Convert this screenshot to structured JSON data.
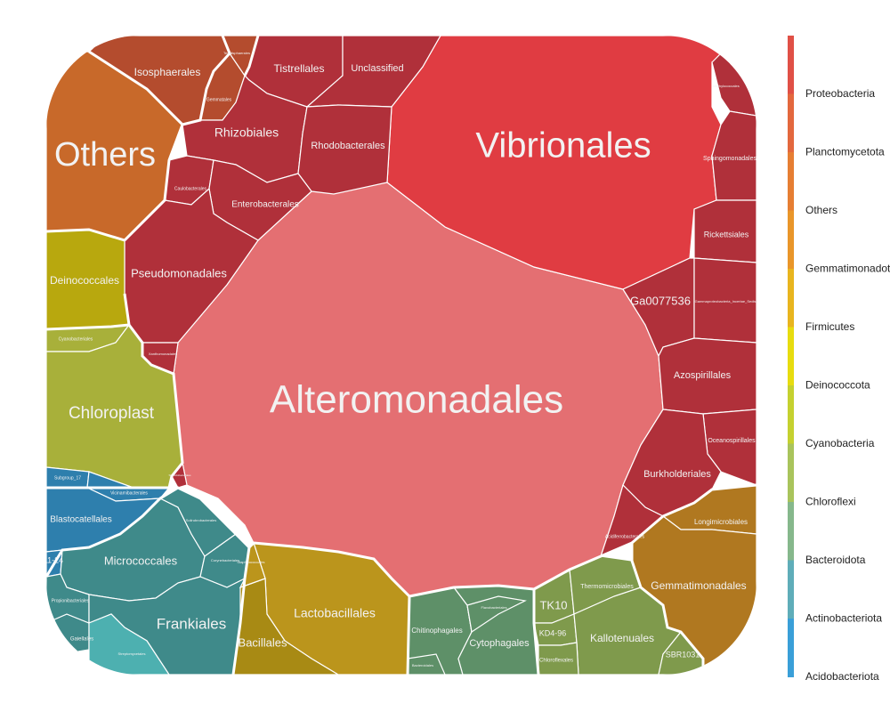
{
  "chart_data": {
    "type": "voronoi-treemap",
    "legend": {
      "placement": "right",
      "entries": [
        {
          "name": "Proteobacteria",
          "color": "#e05046"
        },
        {
          "name": "Planctomycetota",
          "color": "#e3683e"
        },
        {
          "name": "Others",
          "color": "#e67e33"
        },
        {
          "name": "Gemmatimonadota",
          "color": "#e9962a"
        },
        {
          "name": "Firmicutes",
          "color": "#e8b51f"
        },
        {
          "name": "Deinococcota",
          "color": "#e7dc10"
        },
        {
          "name": "Cyanobacteria",
          "color": "#c5d130"
        },
        {
          "name": "Chloroflexi",
          "color": "#a9c45c"
        },
        {
          "name": "Bacteroidota",
          "color": "#86b88c"
        },
        {
          "name": "Actinobacteriota",
          "color": "#5fadb9"
        },
        {
          "name": "Acidobacteriota",
          "color": "#3a9fd8"
        }
      ]
    },
    "cells": [
      {
        "label": "Alteromonadales",
        "group": "Proteobacteria",
        "color": "#e46f72"
      },
      {
        "label": "Vibrionales",
        "group": "Proteobacteria",
        "color": "#e03c42"
      },
      {
        "label": "Others",
        "group": "Others",
        "color": "#c8692a"
      },
      {
        "label": "Isosphaerales",
        "group": "Planctomycetota",
        "color": "#b44c2e"
      },
      {
        "label": "Gemmatales",
        "group": "Planctomycetota",
        "color": "#b44c2e"
      },
      {
        "label": "Tepidisphaerales",
        "group": "Planctomycetota",
        "color": "#b44c2e"
      },
      {
        "label": "Tistrellales",
        "group": "Proteobacteria",
        "color": "#b0303a"
      },
      {
        "label": "Unclassified",
        "group": "Proteobacteria",
        "color": "#b0303a"
      },
      {
        "label": "Rhizobiales",
        "group": "Proteobacteria",
        "color": "#b0303a"
      },
      {
        "label": "Rhodobacterales",
        "group": "Proteobacteria",
        "color": "#b0303a"
      },
      {
        "label": "Caulobacterales",
        "group": "Proteobacteria",
        "color": "#b0303a"
      },
      {
        "label": "Enterobacterales",
        "group": "Proteobacteria",
        "color": "#b0303a"
      },
      {
        "label": "Pseudomonadales",
        "group": "Proteobacteria",
        "color": "#b0303a"
      },
      {
        "label": "Xanthomonadales",
        "group": "Proteobacteria",
        "color": "#b0303a"
      },
      {
        "label": "Methylococcales",
        "group": "Proteobacteria",
        "color": "#b0303a"
      },
      {
        "label": "Sphingomonadales",
        "group": "Proteobacteria",
        "color": "#b0303a"
      },
      {
        "label": "Rickettsiales",
        "group": "Proteobacteria",
        "color": "#b0303a"
      },
      {
        "label": "Ga0077536",
        "group": "Proteobacteria",
        "color": "#b0303a"
      },
      {
        "label": "Gammaproteobacteria_Incertae_Sedis",
        "group": "Proteobacteria",
        "color": "#b0303a"
      },
      {
        "label": "Azospirillales",
        "group": "Proteobacteria",
        "color": "#b0303a"
      },
      {
        "label": "Oceanospirillales",
        "group": "Proteobacteria",
        "color": "#b0303a"
      },
      {
        "label": "Burkholderiales",
        "group": "Proteobacteria",
        "color": "#b0303a"
      },
      {
        "label": "Acidiferrobacterales",
        "group": "Proteobacteria",
        "color": "#b0303a"
      },
      {
        "label": "Steroidobacterales",
        "group": "Proteobacteria",
        "color": "#b0303a"
      },
      {
        "label": "Deinococcales",
        "group": "Deinococcota",
        "color": "#b8a80e"
      },
      {
        "label": "Cyanobacteriales",
        "group": "Cyanobacteria",
        "color": "#a8b03a"
      },
      {
        "label": "Chloroplast",
        "group": "Cyanobacteria",
        "color": "#a8b03a"
      },
      {
        "label": "Subgroup_17",
        "group": "Acidobacteriota",
        "color": "#2e7fad"
      },
      {
        "label": "Vicinamibacterales",
        "group": "Acidobacteriota",
        "color": "#2e7fad"
      },
      {
        "label": "Blastocatellales",
        "group": "Acidobacteriota",
        "color": "#2e7fad"
      },
      {
        "label": "11-24",
        "group": "Acidobacteriota",
        "color": "#2e7fad"
      },
      {
        "label": "Micrococcales",
        "group": "Actinobacteriota",
        "color": "#3f8a8a"
      },
      {
        "label": "Solirubrobacterales",
        "group": "Actinobacteriota",
        "color": "#3f8a8a"
      },
      {
        "label": "Corynebacteriales",
        "group": "Actinobacteriota",
        "color": "#3f8a8a"
      },
      {
        "label": "Gaiellales",
        "group": "Actinobacteriota",
        "color": "#3f8a8a"
      },
      {
        "label": "Propionibacteriales",
        "group": "Actinobacteriota",
        "color": "#3f8a8a"
      },
      {
        "label": "Frankiales",
        "group": "Actinobacteriota",
        "color": "#3f8a8a"
      },
      {
        "label": "Streptomycetales",
        "group": "Actinobacteriota",
        "color": "#4db0b0"
      },
      {
        "label": "Lactobacillales",
        "group": "Firmicutes",
        "color": "#bb951c"
      },
      {
        "label": "Bacillales",
        "group": "Firmicutes",
        "color": "#a88a14"
      },
      {
        "label": "Staphylococcales",
        "group": "Firmicutes",
        "color": "#bb951c"
      },
      {
        "label": "Chitinophagales",
        "group": "Bacteroidota",
        "color": "#5e9068"
      },
      {
        "label": "Cytophagales",
        "group": "Bacteroidota",
        "color": "#5e9068"
      },
      {
        "label": "Flavobacteriales",
        "group": "Bacteroidota",
        "color": "#5e9068"
      },
      {
        "label": "Bacteroidales",
        "group": "Bacteroidota",
        "color": "#5e9068"
      },
      {
        "label": "TK10",
        "group": "Chloroflexi",
        "color": "#7f9a4c"
      },
      {
        "label": "Thermomicrobiales",
        "group": "Chloroflexi",
        "color": "#7f9a4c"
      },
      {
        "label": "KD4-96",
        "group": "Chloroflexi",
        "color": "#7f9a4c"
      },
      {
        "label": "Kallotenuales",
        "group": "Chloroflexi",
        "color": "#7f9a4c"
      },
      {
        "label": "Chloroflexales",
        "group": "Chloroflexi",
        "color": "#7f9a4c"
      },
      {
        "label": "SBR1031",
        "group": "Chloroflexi",
        "color": "#7f9a4c"
      },
      {
        "label": "Longimicrobiales",
        "group": "Gemmatimonadota",
        "color": "#b07820"
      },
      {
        "label": "Gemmatimonadales",
        "group": "Gemmatimonadota",
        "color": "#b07820"
      }
    ]
  }
}
